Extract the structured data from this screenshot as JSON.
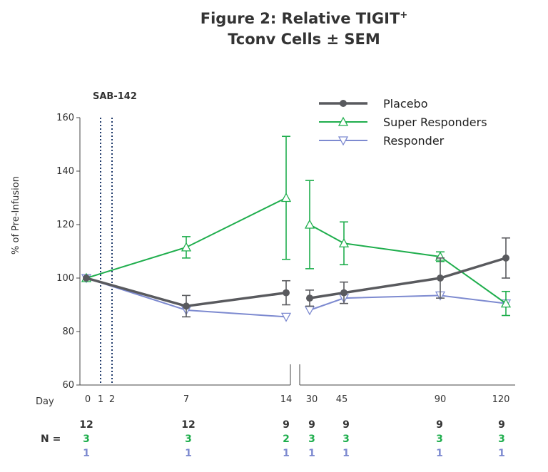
{
  "chart_data": {
    "type": "line",
    "title_line1": "Figure 2: Relative TIGIT",
    "title_sup": "+",
    "title_line2": "Tconv Cells ± SEM",
    "ylabel": "% of Pre-Infusion",
    "xlabel": "Day",
    "ylim": [
      60,
      160
    ],
    "yticks": [
      60,
      80,
      100,
      120,
      140,
      160
    ],
    "xticks": [
      "0",
      "1",
      "2",
      "7",
      "14",
      "30",
      "45",
      "90",
      "120"
    ],
    "dosing_label": "SAB-142",
    "dosing_days": [
      "1",
      "2"
    ],
    "axis_break": "between 14 and 30",
    "legend_position": "top-right",
    "series": [
      {
        "name": "Placebo",
        "color": "#595a5e",
        "marker": "circle-filled",
        "points": [
          {
            "x": "0",
            "y": 100,
            "err": 0
          },
          {
            "x": "7",
            "y": 89.5,
            "err": 4
          },
          {
            "x": "14",
            "y": 94.5,
            "err": 4.5
          },
          {
            "x": "30",
            "y": 92.5,
            "err": 3
          },
          {
            "x": "45",
            "y": 94.5,
            "err": 4
          },
          {
            "x": "90",
            "y": 100,
            "err": 7.5
          },
          {
            "x": "120",
            "y": 107.5,
            "err": 7.5
          }
        ]
      },
      {
        "name": "Super Responders",
        "color": "#1fae4d",
        "marker": "triangle-up-open",
        "points": [
          {
            "x": "0",
            "y": 100,
            "err": 0
          },
          {
            "x": "7",
            "y": 111.5,
            "err": 4
          },
          {
            "x": "14",
            "y": 130,
            "err": 23
          },
          {
            "x": "30",
            "y": 120,
            "err": 16.5
          },
          {
            "x": "45",
            "y": 113,
            "err": 8
          },
          {
            "x": "90",
            "y": 108,
            "err": 1.8
          },
          {
            "x": "120",
            "y": 90.5,
            "err": 4.5
          }
        ]
      },
      {
        "name": "Responder",
        "color": "#7d8ad0",
        "marker": "triangle-down-open",
        "points": [
          {
            "x": "0",
            "y": 100,
            "err": 0
          },
          {
            "x": "7",
            "y": 88,
            "err": 0
          },
          {
            "x": "14",
            "y": 85.5,
            "err": 0
          },
          {
            "x": "30",
            "y": 88,
            "err": 0
          },
          {
            "x": "45",
            "y": 92.5,
            "err": 0
          },
          {
            "x": "90",
            "y": 93.5,
            "err": 0
          },
          {
            "x": "120",
            "y": 90.5,
            "err": 0
          }
        ]
      }
    ],
    "n_label": "N =",
    "n_table": [
      {
        "color": "#333333",
        "values": [
          {
            "x": "0",
            "n": "12"
          },
          {
            "x": "7",
            "n": "12"
          },
          {
            "x": "14",
            "n": "9"
          },
          {
            "x": "30",
            "n": "9"
          },
          {
            "x": "45",
            "n": "9"
          },
          {
            "x": "90",
            "n": "9"
          },
          {
            "x": "120",
            "n": "9"
          }
        ]
      },
      {
        "color": "#1fae4d",
        "values": [
          {
            "x": "0",
            "n": "3"
          },
          {
            "x": "7",
            "n": "3"
          },
          {
            "x": "14",
            "n": "2"
          },
          {
            "x": "30",
            "n": "3"
          },
          {
            "x": "45",
            "n": "3"
          },
          {
            "x": "90",
            "n": "3"
          },
          {
            "x": "120",
            "n": "3"
          }
        ]
      },
      {
        "color": "#7d8ad0",
        "values": [
          {
            "x": "0",
            "n": "1"
          },
          {
            "x": "7",
            "n": "1"
          },
          {
            "x": "14",
            "n": "1"
          },
          {
            "x": "30",
            "n": "1"
          },
          {
            "x": "45",
            "n": "1"
          },
          {
            "x": "90",
            "n": "1"
          },
          {
            "x": "120",
            "n": "1"
          }
        ]
      }
    ]
  }
}
